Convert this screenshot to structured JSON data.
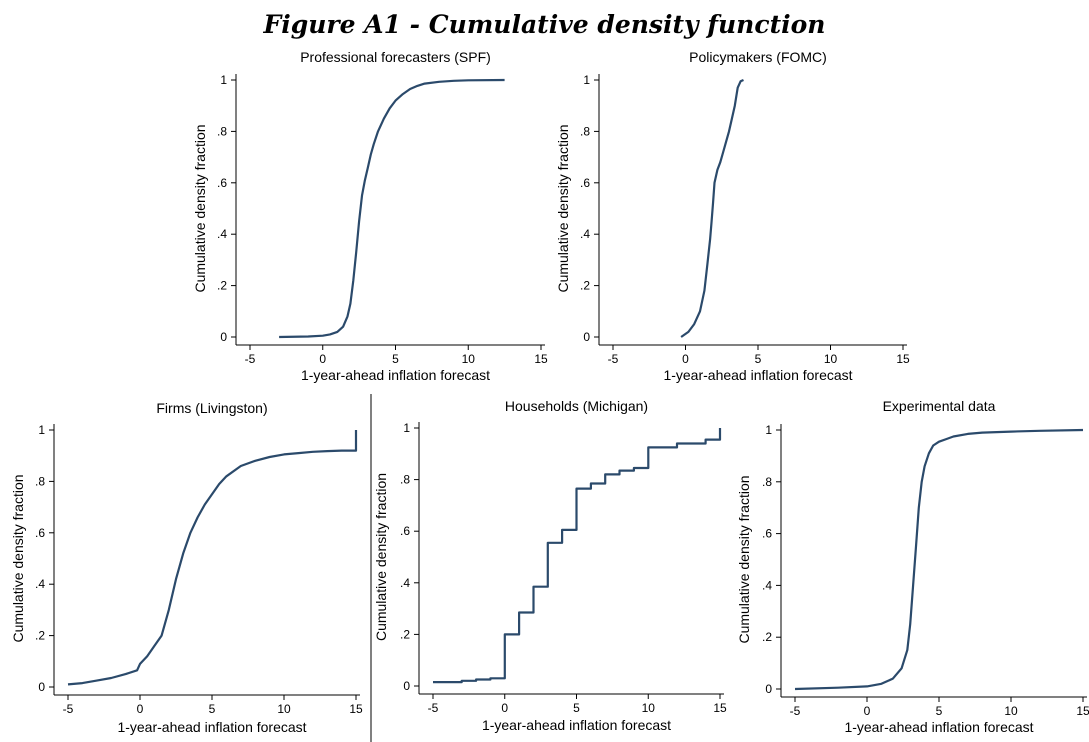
{
  "figure_title": "Figure A1 - Cumulative density function",
  "chart_data": [
    {
      "type": "line",
      "title": "Professional forecasters (SPF)",
      "xlabel": "1-year-ahead inflation forecast",
      "ylabel": "Cumulative density fraction",
      "xlim": [
        -5,
        15
      ],
      "ylim": [
        0,
        1
      ],
      "xticks": [
        -5,
        0,
        5,
        10,
        15
      ],
      "yticks": [
        0,
        0.2,
        0.4,
        0.6,
        0.8,
        1
      ],
      "ytick_labels": [
        "0",
        ".2",
        ".4",
        ".6",
        ".8",
        "1"
      ],
      "grid": false,
      "step": false,
      "series": [
        {
          "color": "#2b4a6b",
          "x": [
            -3,
            -1,
            0,
            0.5,
            1,
            1.4,
            1.7,
            1.9,
            2.1,
            2.3,
            2.5,
            2.7,
            2.9,
            3.1,
            3.3,
            3.5,
            3.8,
            4.2,
            4.6,
            5,
            5.5,
            6,
            6.5,
            7,
            8,
            9,
            10,
            12.5
          ],
          "y": [
            0,
            0.002,
            0.005,
            0.01,
            0.02,
            0.04,
            0.08,
            0.13,
            0.22,
            0.33,
            0.45,
            0.55,
            0.61,
            0.66,
            0.71,
            0.75,
            0.8,
            0.85,
            0.89,
            0.92,
            0.945,
            0.965,
            0.977,
            0.986,
            0.993,
            0.997,
            0.999,
            1
          ]
        }
      ]
    },
    {
      "type": "line",
      "title": "Policymakers (FOMC)",
      "xlabel": "1-year-ahead inflation forecast",
      "ylabel": "Cumulative density fraction",
      "xlim": [
        -5,
        15
      ],
      "ylim": [
        0,
        1
      ],
      "xticks": [
        -5,
        0,
        5,
        10,
        15
      ],
      "yticks": [
        0,
        0.2,
        0.4,
        0.6,
        0.8,
        1
      ],
      "ytick_labels": [
        "0",
        ".2",
        ".4",
        ".6",
        ".8",
        "1"
      ],
      "grid": false,
      "step": false,
      "series": [
        {
          "color": "#2b4a6b",
          "x": [
            -0.3,
            0.2,
            0.6,
            1.0,
            1.3,
            1.5,
            1.7,
            1.8,
            1.9,
            2.0,
            2.2,
            2.4,
            2.6,
            2.8,
            3.0,
            3.2,
            3.4,
            3.6,
            3.8,
            4.0
          ],
          "y": [
            0,
            0.02,
            0.05,
            0.1,
            0.18,
            0.28,
            0.38,
            0.45,
            0.52,
            0.6,
            0.65,
            0.68,
            0.72,
            0.76,
            0.8,
            0.85,
            0.9,
            0.97,
            0.995,
            1
          ]
        }
      ]
    },
    {
      "type": "line",
      "title": "Firms (Livingston)",
      "xlabel": "1-year-ahead inflation forecast",
      "ylabel": "Cumulative density fraction",
      "xlim": [
        -5,
        15
      ],
      "ylim": [
        0,
        1
      ],
      "xticks": [
        -5,
        0,
        5,
        10,
        15
      ],
      "yticks": [
        0,
        0.2,
        0.4,
        0.6,
        0.8,
        1
      ],
      "ytick_labels": [
        "0",
        ".2",
        ".4",
        ".6",
        ".8",
        "1"
      ],
      "grid": false,
      "step": false,
      "series": [
        {
          "color": "#2b4a6b",
          "x": [
            -5,
            -4,
            -3,
            -2,
            -1,
            -0.2,
            0,
            0.5,
            1,
            1.5,
            2,
            2.5,
            3,
            3.5,
            4,
            4.5,
            5,
            5.5,
            6,
            7,
            8,
            9,
            10,
            11,
            12,
            13,
            14,
            14.95,
            15,
            15
          ],
          "y": [
            0.01,
            0.015,
            0.025,
            0.035,
            0.05,
            0.065,
            0.09,
            0.12,
            0.16,
            0.2,
            0.3,
            0.42,
            0.52,
            0.6,
            0.66,
            0.71,
            0.75,
            0.79,
            0.82,
            0.86,
            0.88,
            0.895,
            0.905,
            0.91,
            0.915,
            0.918,
            0.92,
            0.92,
            0.92,
            1
          ]
        }
      ]
    },
    {
      "type": "line",
      "title": "Households (Michigan)",
      "xlabel": "1-year-ahead inflation forecast",
      "ylabel": "Cumulative density fraction",
      "xlim": [
        -5,
        15
      ],
      "ylim": [
        0,
        1
      ],
      "xticks": [
        -5,
        0,
        5,
        10,
        15
      ],
      "yticks": [
        0,
        0.2,
        0.4,
        0.6,
        0.8,
        1
      ],
      "ytick_labels": [
        "0",
        ".2",
        ".4",
        ".6",
        ".8",
        "1"
      ],
      "grid": false,
      "step": true,
      "series": [
        {
          "color": "#2b4a6b",
          "x": [
            -5,
            -3,
            -2,
            -1,
            0,
            1,
            2,
            3,
            4,
            5,
            6,
            7,
            8,
            9,
            10,
            12,
            14,
            15
          ],
          "y": [
            0.015,
            0.02,
            0.025,
            0.03,
            0.2,
            0.285,
            0.385,
            0.555,
            0.605,
            0.765,
            0.785,
            0.82,
            0.835,
            0.845,
            0.925,
            0.94,
            0.955,
            1
          ]
        }
      ]
    },
    {
      "type": "line",
      "title": "Experimental data",
      "xlabel": "1-year-ahead inflation forecast",
      "ylabel": "Cumulative density fraction",
      "xlim": [
        -5,
        15
      ],
      "ylim": [
        0,
        1
      ],
      "xticks": [
        -5,
        0,
        5,
        10,
        15
      ],
      "yticks": [
        0,
        0.2,
        0.4,
        0.6,
        0.8,
        1
      ],
      "ytick_labels": [
        "0",
        ".2",
        ".4",
        ".6",
        ".8",
        "1"
      ],
      "grid": false,
      "step": false,
      "series": [
        {
          "color": "#2b4a6b",
          "x": [
            -5,
            -2,
            0,
            1,
            1.8,
            2.4,
            2.8,
            3.0,
            3.2,
            3.4,
            3.6,
            3.8,
            4.0,
            4.3,
            4.6,
            5,
            5.5,
            6,
            7,
            8,
            10,
            12,
            15
          ],
          "y": [
            0,
            0.005,
            0.01,
            0.02,
            0.04,
            0.08,
            0.15,
            0.25,
            0.4,
            0.55,
            0.7,
            0.8,
            0.86,
            0.91,
            0.94,
            0.955,
            0.965,
            0.975,
            0.985,
            0.99,
            0.994,
            0.997,
            1
          ]
        }
      ]
    }
  ]
}
